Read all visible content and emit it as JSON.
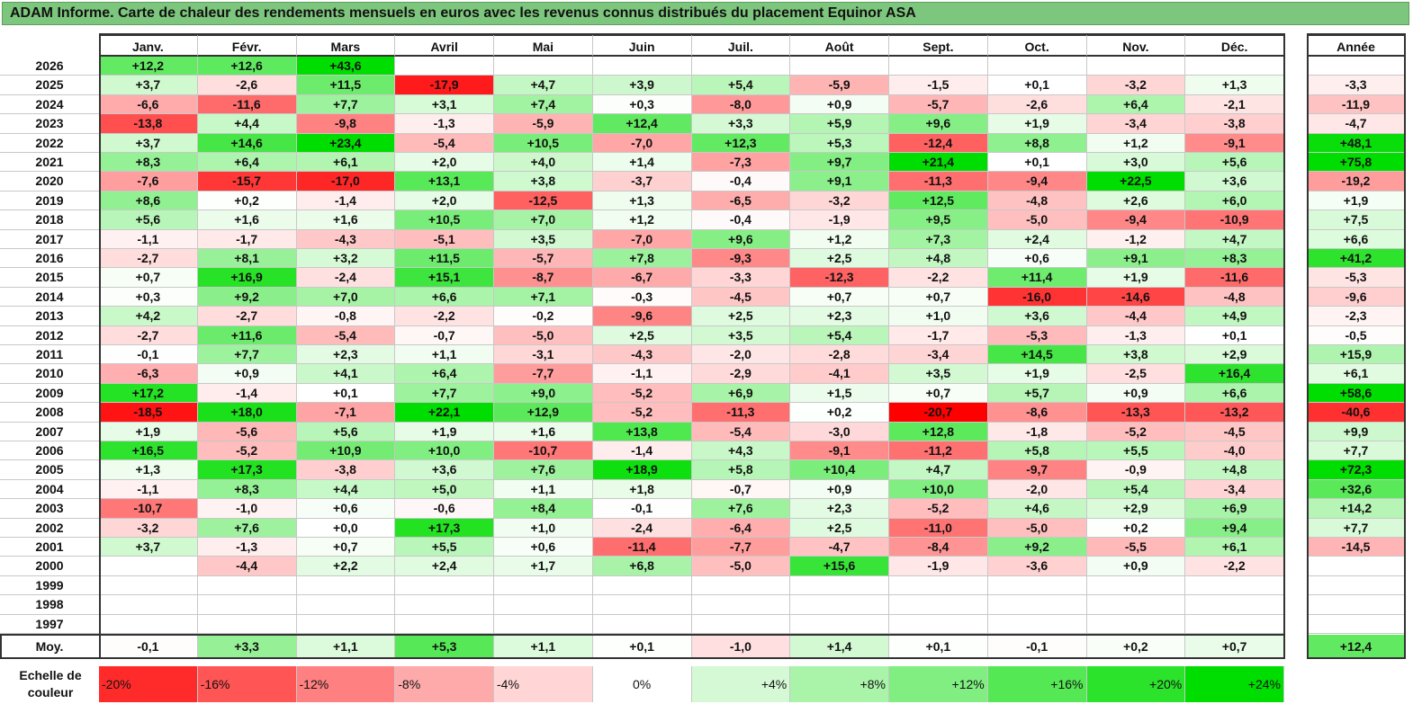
{
  "title": "ADAM Informe. Carte de chaleur des rendements mensuels en euros avec les revenus connus distribués du placement Equinor ASA",
  "chart_data": {
    "type": "heatmap",
    "title": "ADAM Informe. Carte de chaleur des rendements mensuels en euros avec les revenus connus distribués du placement Equinor ASA",
    "months": [
      "Janv.",
      "Févr.",
      "Mars",
      "Avril",
      "Mai",
      "Juin",
      "Juil.",
      "Août",
      "Sept.",
      "Oct.",
      "Nov.",
      "Déc."
    ],
    "year_header": "Année",
    "rows": [
      {
        "year": "2026",
        "values": [
          "+12,2",
          "+12,6",
          "+43,6",
          "",
          "",
          "",
          "",
          "",
          "",
          "",
          "",
          ""
        ],
        "annual": ""
      },
      {
        "year": "2025",
        "values": [
          "+3,7",
          "-2,6",
          "+11,5",
          "-17,9",
          "+4,7",
          "+3,9",
          "+5,4",
          "-5,9",
          "-1,5",
          "+0,1",
          "-3,2",
          "+1,3"
        ],
        "annual": "-3,3"
      },
      {
        "year": "2024",
        "values": [
          "-6,6",
          "-11,6",
          "+7,7",
          "+3,1",
          "+7,4",
          "+0,3",
          "-8,0",
          "+0,9",
          "-5,7",
          "-2,6",
          "+6,4",
          "-2,1"
        ],
        "annual": "-11,9"
      },
      {
        "year": "2023",
        "values": [
          "-13,8",
          "+4,4",
          "-9,8",
          "-1,3",
          "-5,9",
          "+12,4",
          "+3,3",
          "+5,9",
          "+9,6",
          "+1,9",
          "-3,4",
          "-3,8"
        ],
        "annual": "-4,7"
      },
      {
        "year": "2022",
        "values": [
          "+3,7",
          "+14,6",
          "+23,4",
          "-5,4",
          "+10,5",
          "-7,0",
          "+12,3",
          "+5,3",
          "-12,4",
          "+8,8",
          "+1,2",
          "-9,1"
        ],
        "annual": "+48,1"
      },
      {
        "year": "2021",
        "values": [
          "+8,3",
          "+6,4",
          "+6,1",
          "+2,0",
          "+4,0",
          "+1,4",
          "-7,3",
          "+9,7",
          "+21,4",
          "+0,1",
          "+3,0",
          "+5,6"
        ],
        "annual": "+75,8"
      },
      {
        "year": "2020",
        "values": [
          "-7,6",
          "-15,7",
          "-17,0",
          "+13,1",
          "+3,8",
          "-3,7",
          "-0,4",
          "+9,1",
          "-11,3",
          "-9,4",
          "+22,5",
          "+3,6"
        ],
        "annual": "-19,2"
      },
      {
        "year": "2019",
        "values": [
          "+8,6",
          "+0,2",
          "-1,4",
          "+2,0",
          "-12,5",
          "+1,3",
          "-6,5",
          "-3,2",
          "+12,5",
          "-4,8",
          "+2,6",
          "+6,0"
        ],
        "annual": "+1,9"
      },
      {
        "year": "2018",
        "values": [
          "+5,6",
          "+1,6",
          "+1,6",
          "+10,5",
          "+7,0",
          "+1,2",
          "-0,4",
          "-1,9",
          "+9,5",
          "-5,0",
          "-9,4",
          "-10,9"
        ],
        "annual": "+7,5"
      },
      {
        "year": "2017",
        "values": [
          "-1,1",
          "-1,7",
          "-4,3",
          "-5,1",
          "+3,5",
          "-7,0",
          "+9,6",
          "+1,2",
          "+7,3",
          "+2,4",
          "-1,2",
          "+4,7"
        ],
        "annual": "+6,6"
      },
      {
        "year": "2016",
        "values": [
          "-2,7",
          "+8,1",
          "+3,2",
          "+11,5",
          "-5,7",
          "+7,8",
          "-9,3",
          "+2,5",
          "+4,8",
          "+0,6",
          "+9,1",
          "+8,3"
        ],
        "annual": "+41,2"
      },
      {
        "year": "2015",
        "values": [
          "+0,7",
          "+16,9",
          "-2,4",
          "+15,1",
          "-8,7",
          "-6,7",
          "-3,3",
          "-12,3",
          "-2,2",
          "+11,4",
          "+1,9",
          "-11,6"
        ],
        "annual": "-5,3"
      },
      {
        "year": "2014",
        "values": [
          "+0,3",
          "+9,2",
          "+7,0",
          "+6,6",
          "+7,1",
          "-0,3",
          "-4,5",
          "+0,7",
          "+0,7",
          "-16,0",
          "-14,6",
          "-4,8"
        ],
        "annual": "-9,6"
      },
      {
        "year": "2013",
        "values": [
          "+4,2",
          "-2,7",
          "-0,8",
          "-2,2",
          "-0,2",
          "-9,6",
          "+2,5",
          "+2,3",
          "+1,0",
          "+3,6",
          "-4,4",
          "+4,9"
        ],
        "annual": "-2,3"
      },
      {
        "year": "2012",
        "values": [
          "-2,7",
          "+11,6",
          "-5,4",
          "-0,7",
          "-5,0",
          "+2,5",
          "+3,5",
          "+5,4",
          "-1,7",
          "-5,3",
          "-1,3",
          "+0,1"
        ],
        "annual": "-0,5"
      },
      {
        "year": "2011",
        "values": [
          "-0,1",
          "+7,7",
          "+2,3",
          "+1,1",
          "-3,1",
          "-4,3",
          "-2,0",
          "-2,8",
          "-3,4",
          "+14,5",
          "+3,8",
          "+2,9"
        ],
        "annual": "+15,9"
      },
      {
        "year": "2010",
        "values": [
          "-6,3",
          "+0,9",
          "+4,1",
          "+6,4",
          "-7,7",
          "-1,1",
          "-2,9",
          "-4,1",
          "+3,5",
          "+1,9",
          "-2,5",
          "+16,4"
        ],
        "annual": "+6,1"
      },
      {
        "year": "2009",
        "values": [
          "+17,2",
          "-1,4",
          "+0,1",
          "+7,7",
          "+9,0",
          "-5,2",
          "+6,9",
          "+1,5",
          "+0,7",
          "+5,7",
          "+0,9",
          "+6,6"
        ],
        "annual": "+58,6"
      },
      {
        "year": "2008",
        "values": [
          "-18,5",
          "+18,0",
          "-7,1",
          "+22,1",
          "+12,9",
          "-5,2",
          "-11,3",
          "+0,2",
          "-20,7",
          "-8,6",
          "-13,3",
          "-13,2"
        ],
        "annual": "-40,6"
      },
      {
        "year": "2007",
        "values": [
          "+1,9",
          "-5,6",
          "+5,6",
          "+1,9",
          "+1,6",
          "+13,8",
          "-5,4",
          "-3,0",
          "+12,8",
          "-1,8",
          "-5,2",
          "-4,5"
        ],
        "annual": "+9,9"
      },
      {
        "year": "2006",
        "values": [
          "+16,5",
          "-5,2",
          "+10,9",
          "+10,0",
          "-10,7",
          "-1,4",
          "+4,3",
          "-9,1",
          "-11,2",
          "+5,8",
          "+5,5",
          "-4,0"
        ],
        "annual": "+7,7"
      },
      {
        "year": "2005",
        "values": [
          "+1,3",
          "+17,3",
          "-3,8",
          "+3,6",
          "+7,6",
          "+18,9",
          "+5,8",
          "+10,4",
          "+4,7",
          "-9,7",
          "-0,9",
          "+4,8"
        ],
        "annual": "+72,3"
      },
      {
        "year": "2004",
        "values": [
          "-1,1",
          "+8,3",
          "+4,4",
          "+5,0",
          "+1,1",
          "+1,8",
          "-0,7",
          "+0,9",
          "+10,0",
          "-2,0",
          "+5,4",
          "-3,4"
        ],
        "annual": "+32,6"
      },
      {
        "year": "2003",
        "values": [
          "-10,7",
          "-1,0",
          "+0,6",
          "-0,6",
          "+8,4",
          "-0,1",
          "+7,6",
          "+2,3",
          "-5,2",
          "+4,6",
          "+2,9",
          "+6,9"
        ],
        "annual": "+14,2"
      },
      {
        "year": "2002",
        "values": [
          "-3,2",
          "+7,6",
          "+0,0",
          "+17,3",
          "+1,0",
          "-2,4",
          "-6,4",
          "+2,5",
          "-11,0",
          "-5,0",
          "+0,2",
          "+9,4"
        ],
        "annual": "+7,7"
      },
      {
        "year": "2001",
        "values": [
          "+3,7",
          "-1,3",
          "+0,7",
          "+5,5",
          "+0,6",
          "-11,4",
          "-7,7",
          "-4,7",
          "-8,4",
          "+9,2",
          "-5,5",
          "+6,1"
        ],
        "annual": "-14,5"
      },
      {
        "year": "2000",
        "values": [
          "",
          "-4,4",
          "+2,2",
          "+2,4",
          "+1,7",
          "+6,8",
          "-5,0",
          "+15,6",
          "-1,9",
          "-3,6",
          "+0,9",
          "-2,2"
        ],
        "annual": ""
      },
      {
        "year": "1999",
        "values": [
          "",
          "",
          "",
          "",
          "",
          "",
          "",
          "",
          "",
          "",
          "",
          ""
        ],
        "annual": ""
      },
      {
        "year": "1998",
        "values": [
          "",
          "",
          "",
          "",
          "",
          "",
          "",
          "",
          "",
          "",
          "",
          ""
        ],
        "annual": ""
      },
      {
        "year": "1997",
        "values": [
          "",
          "",
          "",
          "",
          "",
          "",
          "",
          "",
          "",
          "",
          "",
          ""
        ],
        "annual": ""
      }
    ],
    "average": {
      "label": "Moy.",
      "values": [
        "-0,1",
        "+3,3",
        "+1,1",
        "+5,3",
        "+1,1",
        "+0,1",
        "-1,0",
        "+1,4",
        "+0,1",
        "-0,1",
        "+0,2",
        "+0,7"
      ],
      "annual": "+12,4"
    },
    "scale": {
      "label": "Echelle de couleur",
      "steps": [
        "-20%",
        "-16%",
        "-12%",
        "-8%",
        "-4%",
        "0%",
        "+4%",
        "+8%",
        "+12%",
        "+16%",
        "+20%",
        "+24%"
      ]
    },
    "colors": {
      "negative_max": "#ff0000",
      "neutral": "#ffffff",
      "positive_max": "#00dd00",
      "title_bg": "#7dc67d"
    }
  }
}
